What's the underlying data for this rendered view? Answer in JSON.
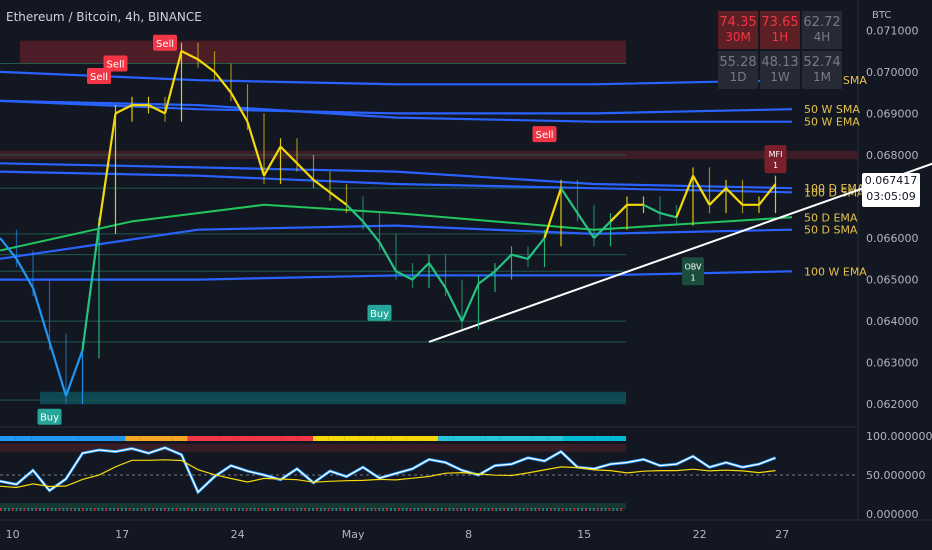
{
  "chart_title": "Ethereum / Bitcoin, 4h, BINANCE",
  "currency": "BTC",
  "current_price": "0.067417",
  "countdown": "03:05:09",
  "mtf_table": [
    {
      "value": "74.35",
      "tf": "30M",
      "style": "red"
    },
    {
      "value": "73.65",
      "tf": "1H",
      "style": "red"
    },
    {
      "value": "62.72",
      "tf": "4H",
      "style": "gry"
    },
    {
      "value": "55.28",
      "tf": "1D",
      "style": "gry"
    },
    {
      "value": "48.13",
      "tf": "1W",
      "style": "gry"
    },
    {
      "value": "52.74",
      "tf": "1M",
      "style": "gry"
    }
  ],
  "colors": {
    "background": "#131722",
    "bull": "#f5d90a",
    "bear": "#2196f3",
    "green": "#26c281",
    "ma_green": "#22c55e",
    "ma_blue": "#2962ff",
    "label_text": "#e6c24a",
    "sell": "#f23645",
    "buy": "#26a69a"
  },
  "chart_data": {
    "type": "line",
    "title": "Ethereum / Bitcoin, 4h, BINANCE",
    "y_axis_label": "BTC",
    "x_ticks": [
      "10",
      "17",
      "24",
      "May",
      "8",
      "15",
      "22",
      "27"
    ],
    "x_range_days": [
      0,
      52
    ],
    "ylim": [
      0.0615,
      0.0712
    ],
    "y_ticks": [
      "0.071000",
      "0.070000",
      "0.069000",
      "0.068000",
      "0.067000",
      "0.066000",
      "0.065000",
      "0.064000",
      "0.063000",
      "0.062000"
    ],
    "price_series": {
      "day": [
        0,
        1,
        2,
        3,
        4,
        5,
        6,
        7,
        8,
        9,
        10,
        11,
        12,
        13,
        14,
        15,
        16,
        17,
        18,
        19,
        20,
        21,
        22,
        23,
        24,
        25,
        26,
        27,
        28,
        29,
        30,
        31,
        32,
        33,
        34,
        35,
        36,
        37,
        38,
        39,
        40,
        41,
        42,
        43,
        44,
        45,
        46,
        47
      ],
      "close": [
        0.066,
        0.0655,
        0.0648,
        0.0635,
        0.0622,
        0.0633,
        0.0663,
        0.069,
        0.0692,
        0.0692,
        0.069,
        0.0705,
        0.0703,
        0.07,
        0.0695,
        0.0688,
        0.0675,
        0.0682,
        0.0678,
        0.0674,
        0.0671,
        0.0668,
        0.0664,
        0.0659,
        0.0652,
        0.065,
        0.0654,
        0.0648,
        0.064,
        0.0649,
        0.0652,
        0.0656,
        0.0655,
        0.066,
        0.0672,
        0.0666,
        0.066,
        0.0664,
        0.0668,
        0.0668,
        0.0666,
        0.0665,
        0.0675,
        0.0668,
        0.0672,
        0.0668,
        0.0668,
        0.0673
      ]
    },
    "horizontal_levels": [
      0.0702,
      0.068,
      0.0672,
      0.0661,
      0.0656,
      0.0652,
      0.064,
      0.0635,
      0.0621
    ],
    "trendline": {
      "from": {
        "day": 26,
        "price": 0.0635
      },
      "to": {
        "day": 58,
        "price": 0.068
      }
    },
    "moving_averages": [
      {
        "label": "100 W SMA",
        "color": "#2962ff",
        "points": [
          [
            0,
            0.07
          ],
          [
            12,
            0.0698
          ],
          [
            24,
            0.0697
          ],
          [
            36,
            0.0697
          ],
          [
            48,
            0.0698
          ]
        ]
      },
      {
        "label": "50 W SMA",
        "color": "#2962ff",
        "points": [
          [
            0,
            0.0693
          ],
          [
            12,
            0.0691
          ],
          [
            24,
            0.069
          ],
          [
            36,
            0.069
          ],
          [
            48,
            0.0691
          ]
        ]
      },
      {
        "label": "50 W EMA",
        "color": "#2962ff",
        "points": [
          [
            0,
            0.0693
          ],
          [
            12,
            0.0692
          ],
          [
            24,
            0.0689
          ],
          [
            36,
            0.0688
          ],
          [
            48,
            0.0688
          ]
        ]
      },
      {
        "label": "100 D EMA",
        "color": "#2962ff",
        "points": [
          [
            0,
            0.0678
          ],
          [
            12,
            0.0677
          ],
          [
            24,
            0.0676
          ],
          [
            36,
            0.0673
          ],
          [
            48,
            0.0672
          ]
        ]
      },
      {
        "label": "100 D SMA",
        "color": "#2962ff",
        "points": [
          [
            0,
            0.0676
          ],
          [
            12,
            0.0675
          ],
          [
            24,
            0.0673
          ],
          [
            36,
            0.0672
          ],
          [
            48,
            0.0671
          ]
        ]
      },
      {
        "label": "50 D EMA",
        "color": "#22c55e",
        "points": [
          [
            0,
            0.0657
          ],
          [
            8,
            0.0664
          ],
          [
            16,
            0.0668
          ],
          [
            24,
            0.0666
          ],
          [
            36,
            0.0662
          ],
          [
            48,
            0.0665
          ]
        ]
      },
      {
        "label": "50 D SMA",
        "color": "#2962ff",
        "points": [
          [
            0,
            0.0655
          ],
          [
            12,
            0.0662
          ],
          [
            24,
            0.0663
          ],
          [
            36,
            0.0661
          ],
          [
            48,
            0.0662
          ]
        ]
      },
      {
        "label": "100 W EMA",
        "color": "#2962ff",
        "points": [
          [
            0,
            0.065
          ],
          [
            12,
            0.065
          ],
          [
            24,
            0.0651
          ],
          [
            36,
            0.0651
          ],
          [
            48,
            0.0652
          ]
        ]
      }
    ],
    "signals": [
      {
        "text": "Sell",
        "day": 10,
        "price": 0.0707,
        "kind": "sell"
      },
      {
        "text": "Sell",
        "day": 7,
        "price": 0.0702,
        "kind": "sell"
      },
      {
        "text": "Sell",
        "day": 6,
        "price": 0.0699,
        "kind": "sell"
      },
      {
        "text": "Sell",
        "day": 33,
        "price": 0.0685,
        "kind": "sell"
      },
      {
        "text": "Buy",
        "day": 23,
        "price": 0.0642,
        "kind": "buy"
      },
      {
        "text": "Buy",
        "day": 3,
        "price": 0.0617,
        "kind": "buy"
      }
    ],
    "indicator_tags": [
      {
        "line1": "MFI",
        "line2": "1",
        "day": 47,
        "price": 0.0679,
        "kind": "sell"
      },
      {
        "line1": "OBV",
        "line2": "1",
        "day": 42,
        "price": 0.0652,
        "kind": "obv"
      }
    ],
    "oscillator": {
      "ylim": [
        0,
        100
      ],
      "y_ticks": [
        "100.000000",
        "50.000000",
        "0.000000"
      ],
      "series": [
        0.42,
        0.38,
        0.56,
        0.3,
        0.45,
        0.78,
        0.82,
        0.8,
        0.84,
        0.78,
        0.85,
        0.76,
        0.28,
        0.48,
        0.62,
        0.55,
        0.5,
        0.44,
        0.58,
        0.4,
        0.55,
        0.48,
        0.6,
        0.46,
        0.52,
        0.58,
        0.7,
        0.66,
        0.56,
        0.5,
        0.62,
        0.64,
        0.72,
        0.68,
        0.8,
        0.6,
        0.58,
        0.64,
        0.66,
        0.7,
        0.62,
        0.64,
        0.74,
        0.6,
        0.66,
        0.6,
        0.64,
        0.72
      ]
    }
  }
}
